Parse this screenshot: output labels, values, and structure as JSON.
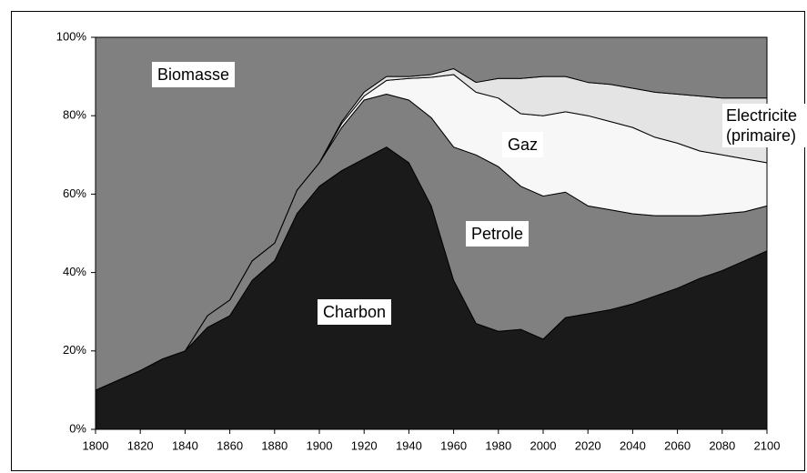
{
  "chart_data": {
    "type": "stacked-area",
    "x": [
      1800,
      1810,
      1820,
      1830,
      1840,
      1850,
      1860,
      1870,
      1880,
      1890,
      1900,
      1910,
      1920,
      1930,
      1940,
      1950,
      1960,
      1970,
      1980,
      1990,
      2000,
      2010,
      2020,
      2030,
      2040,
      2050,
      2060,
      2070,
      2080,
      2090,
      2100
    ],
    "series": [
      {
        "name": "Charbon",
        "color": "#1a1a1a",
        "values": [
          10,
          12.5,
          15,
          18,
          20,
          26,
          29,
          38,
          43,
          55,
          62,
          66,
          69,
          72,
          68,
          57,
          38,
          27,
          25,
          25.5,
          23,
          28.5,
          29.5,
          30.5,
          32,
          34,
          36,
          38.5,
          40.5,
          43,
          45.5
        ]
      },
      {
        "name": "Petrole",
        "color": "#808080",
        "values": [
          0,
          0,
          0,
          0,
          0,
          3,
          4,
          5,
          4.5,
          6,
          6,
          11,
          15,
          13.5,
          16,
          22.5,
          34,
          43,
          42,
          36.5,
          36.5,
          32,
          27.5,
          25.5,
          23,
          20.5,
          18.5,
          16,
          14.5,
          12.5,
          11.5
        ]
      },
      {
        "name": "Gaz",
        "color": "#f7f7f7",
        "values": [
          0,
          0,
          0,
          0,
          0,
          0,
          0,
          0,
          0,
          0,
          0,
          1,
          1,
          3.5,
          5.5,
          10.3,
          18.5,
          16,
          17.5,
          18.5,
          20.5,
          20.5,
          23,
          22.5,
          22,
          20,
          18.5,
          16.5,
          15,
          13.5,
          11
        ]
      },
      {
        "name": "Electricite (primaire)",
        "color": "#e4e4e4",
        "values": [
          0,
          0,
          0,
          0,
          0,
          0,
          0,
          0,
          0,
          0,
          0,
          0.5,
          1,
          1,
          0.5,
          0.7,
          1.5,
          2.5,
          5,
          9,
          10,
          9,
          8.5,
          9.5,
          10,
          11.5,
          12.5,
          14,
          14.5,
          15.5,
          16.5
        ]
      },
      {
        "name": "Biomasse",
        "color": "#808080",
        "values": [
          90,
          87.5,
          85,
          82,
          80,
          71,
          67,
          57,
          52.5,
          39,
          32,
          21.5,
          14,
          10,
          10,
          9.5,
          8,
          11.5,
          10.5,
          10.5,
          10,
          10,
          11.5,
          12,
          13,
          14,
          14.5,
          15,
          15.5,
          15.5,
          15.5
        ]
      }
    ],
    "xlim": [
      1800,
      2100
    ],
    "xticks": [
      1800,
      1820,
      1840,
      1860,
      1880,
      1900,
      1920,
      1940,
      1960,
      1980,
      2000,
      2020,
      2040,
      2060,
      2080,
      2100
    ],
    "ylim": [
      0,
      100
    ],
    "yticks": [
      {
        "value": 0,
        "label": "0%"
      },
      {
        "value": 20,
        "label": "20%"
      },
      {
        "value": 40,
        "label": "40%"
      },
      {
        "value": 60,
        "label": "60%"
      },
      {
        "value": 80,
        "label": "80%"
      },
      {
        "value": 100,
        "label": "100%"
      }
    ]
  }
}
